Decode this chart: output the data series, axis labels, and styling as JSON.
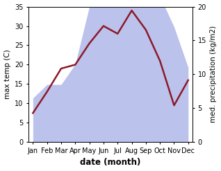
{
  "months": [
    "Jan",
    "Feb",
    "Mar",
    "Apr",
    "May",
    "Jun",
    "Jul",
    "Aug",
    "Sep",
    "Oct",
    "Nov",
    "Dec"
  ],
  "month_x": [
    0,
    1,
    2,
    3,
    4,
    5,
    6,
    7,
    8,
    9,
    10,
    11
  ],
  "temperature": [
    7.5,
    13.0,
    19.0,
    20.0,
    25.5,
    30.0,
    28.0,
    34.0,
    29.0,
    21.0,
    9.5,
    16.0
  ],
  "precipitation": [
    6.5,
    8.5,
    8.5,
    11.5,
    20.0,
    24.0,
    23.5,
    24.0,
    22.0,
    21.5,
    17.0,
    11.0
  ],
  "temp_ylim": [
    0,
    35
  ],
  "precip_ylim": [
    0,
    20
  ],
  "fill_color": "#b0b8e8",
  "fill_alpha": 0.85,
  "line_color": "#8b1a2a",
  "line_width": 1.8,
  "xlabel": "date (month)",
  "ylabel_left": "max temp (C)",
  "ylabel_right": "med. precipitation (kg/m2)",
  "xlabel_fontsize": 8.5,
  "ylabel_fontsize": 7.5,
  "tick_fontsize": 7,
  "background_color": "#ffffff"
}
